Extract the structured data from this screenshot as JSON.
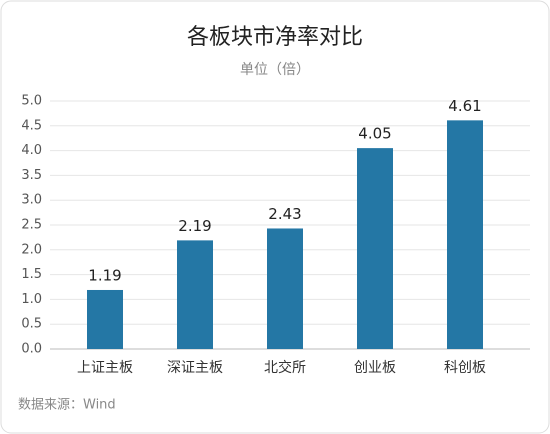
{
  "chart_data": {
    "type": "bar",
    "title": "各板块市净率对比",
    "subtitle": "单位（倍）",
    "categories": [
      "上证主板",
      "深证主板",
      "北交所",
      "创业板",
      "科创板"
    ],
    "values": [
      1.19,
      2.19,
      2.43,
      4.05,
      4.61
    ],
    "color": "#2477a5",
    "ylim": [
      0,
      5
    ],
    "yticks": [
      {
        "value": 0,
        "label": "0.0"
      },
      0.5,
      {
        "value": 1,
        "label": "1.0"
      },
      1.5,
      {
        "value": 2,
        "label": "2.0"
      },
      2.5,
      {
        "value": 3,
        "label": "3.0"
      },
      3.5,
      {
        "value": 4,
        "label": "4.0"
      },
      4.5,
      {
        "value": 5,
        "label": "5.0"
      }
    ],
    "grid": true,
    "source": "数据来源：Wind"
  }
}
